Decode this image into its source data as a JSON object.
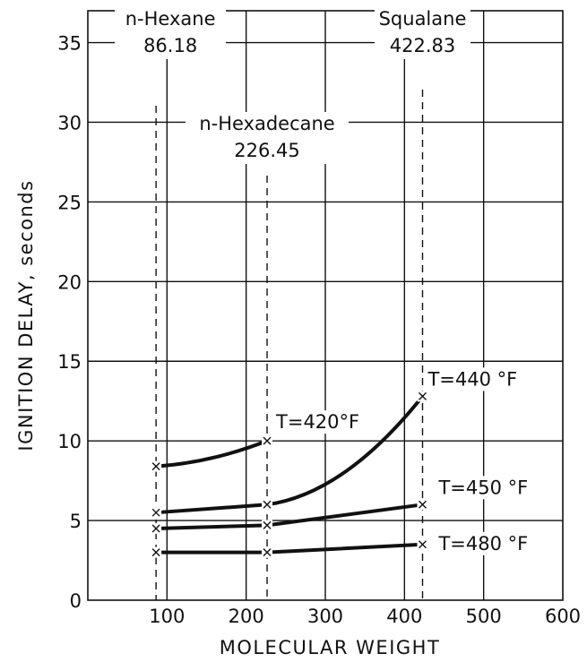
{
  "chart_data": {
    "type": "line",
    "xlabel": "MOLECULAR WEIGHT",
    "ylabel": "IGNITION DELAY, seconds",
    "xlim": [
      0,
      600
    ],
    "ylim": [
      0,
      37
    ],
    "x_ticks": [
      100,
      200,
      300,
      400,
      500,
      600
    ],
    "y_ticks": [
      0,
      5,
      10,
      15,
      20,
      25,
      30,
      35
    ],
    "grid": true,
    "compounds": [
      {
        "name": "n-Hexane",
        "mw_label": "86.18",
        "mw": 86.18
      },
      {
        "name": "n-Hexadecane",
        "mw_label": "226.45",
        "mw": 226.45
      },
      {
        "name": "Squalane",
        "mw_label": "422.83",
        "mw": 422.83
      }
    ],
    "series": [
      {
        "name": "T = 420°F",
        "label": "T=420°F",
        "x": [
          86.18,
          226.45
        ],
        "y": [
          8.4,
          10.0
        ]
      },
      {
        "name": "T = 440°F",
        "label": "T=440 °F",
        "x": [
          86.18,
          226.45,
          422.83
        ],
        "y": [
          5.5,
          6.0,
          12.8
        ]
      },
      {
        "name": "T = 450°F",
        "label": "T=450 °F",
        "x": [
          86.18,
          226.45,
          422.83
        ],
        "y": [
          4.5,
          4.7,
          6.0
        ]
      },
      {
        "name": "T = 480°F",
        "label": "T=480 °F",
        "x": [
          86.18,
          226.45,
          422.83
        ],
        "y": [
          3.0,
          3.0,
          3.5
        ]
      }
    ]
  }
}
